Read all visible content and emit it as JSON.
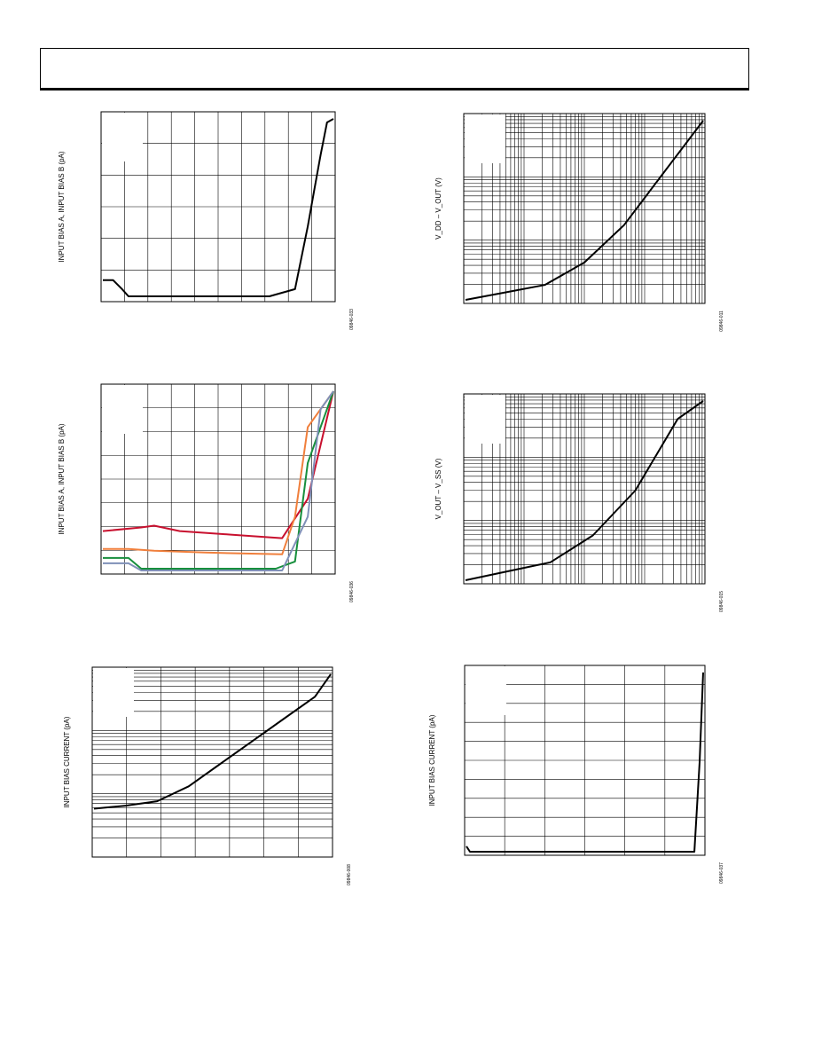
{
  "page": {
    "header": ""
  },
  "chart_data": [
    {
      "id": "plot1",
      "type": "line",
      "ylabel": "INPUT BIAS A, INPUT BIAS B (pA)",
      "code": "09846-033",
      "grid": {
        "x_lines": 10,
        "y_lines": 6,
        "log_x": false,
        "log_y": false
      },
      "series": [
        {
          "color": "#000000",
          "points": [
            [
              0,
              0.1
            ],
            [
              0.8,
              0.1
            ],
            [
              1.5,
              0.05
            ],
            [
              2,
              0.01
            ],
            [
              3,
              0.01
            ],
            [
              6,
              0.01
            ],
            [
              10,
              0.01
            ],
            [
              13,
              0.01
            ],
            [
              15,
              0.05
            ],
            [
              16,
              0.4
            ],
            [
              16.5,
              0.6
            ],
            [
              17,
              0.8
            ],
            [
              17.5,
              0.98
            ],
            [
              18,
              1.0
            ]
          ]
        }
      ]
    },
    {
      "id": "plot2",
      "type": "line",
      "ylabel": "INPUT BIAS A, INPUT BIAS B (pA)",
      "code": "09846-036",
      "grid": {
        "x_lines": 10,
        "y_lines": 8,
        "log_x": false,
        "log_y": false
      },
      "series": [
        {
          "color": "#c8102e",
          "points": [
            [
              0,
              0.22
            ],
            [
              3,
              0.24
            ],
            [
              4,
              0.25
            ],
            [
              6,
              0.22
            ],
            [
              10,
              0.2
            ],
            [
              14,
              0.18
            ],
            [
              16,
              0.4
            ],
            [
              18,
              1.0
            ]
          ]
        },
        {
          "color": "#f07f3c",
          "points": [
            [
              0,
              0.12
            ],
            [
              2,
              0.12
            ],
            [
              4,
              0.11
            ],
            [
              8,
              0.1
            ],
            [
              14,
              0.09
            ],
            [
              15,
              0.3
            ],
            [
              16,
              0.8
            ],
            [
              18,
              1.0
            ]
          ]
        },
        {
          "color": "#178f3d",
          "points": [
            [
              0,
              0.07
            ],
            [
              2,
              0.07
            ],
            [
              3,
              0.01
            ],
            [
              8,
              0.01
            ],
            [
              13.5,
              0.01
            ],
            [
              15,
              0.05
            ],
            [
              16,
              0.6
            ],
            [
              18,
              1.0
            ]
          ]
        },
        {
          "color": "#7f90b8",
          "points": [
            [
              0,
              0.04
            ],
            [
              2,
              0.04
            ],
            [
              3,
              0.0
            ],
            [
              8,
              0.0
            ],
            [
              14,
              0.0
            ],
            [
              16,
              0.3
            ],
            [
              17,
              0.9
            ],
            [
              18,
              1.0
            ]
          ]
        }
      ]
    },
    {
      "id": "plot3",
      "type": "line",
      "ylabel": "INPUT BIAS CURRENT (pA)",
      "code": "09846-008",
      "grid": {
        "x_lines": 7,
        "y_lines": 3,
        "log_x": false,
        "log_y": true
      },
      "series": [
        {
          "color": "#000000",
          "points": [
            [
              0,
              0.3
            ],
            [
              2,
              0.32
            ],
            [
              4,
              0.35
            ],
            [
              6,
              0.45
            ],
            [
              8,
              0.6
            ],
            [
              10,
              0.75
            ],
            [
              12,
              0.9
            ],
            [
              14,
              1.05
            ],
            [
              15,
              1.2
            ]
          ]
        }
      ]
    },
    {
      "id": "plot4",
      "type": "line",
      "ylabel": "V_DD – V_OUT (V)",
      "code": "09846-011",
      "grid": {
        "x_lines": 4,
        "y_lines": 3,
        "log_x": true,
        "log_y": true
      },
      "series": [
        {
          "color": "#000000",
          "points": [
            [
              0,
              0
            ],
            [
              0.5,
              0.05
            ],
            [
              1,
              0.1
            ],
            [
              1.5,
              0.25
            ],
            [
              2,
              0.5
            ],
            [
              2.5,
              0.85
            ],
            [
              3,
              1.2
            ]
          ]
        }
      ]
    },
    {
      "id": "plot5",
      "type": "line",
      "ylabel": "V_OUT – V_SS (V)",
      "code": "09846-015",
      "grid": {
        "x_lines": 4,
        "y_lines": 3,
        "log_x": true,
        "log_y": true
      },
      "series": [
        {
          "color": "#000000",
          "points": [
            [
              0,
              0
            ],
            [
              0.5,
              0.05
            ],
            [
              1,
              0.1
            ],
            [
              1.5,
              0.25
            ],
            [
              2,
              0.5
            ],
            [
              2.5,
              0.9
            ],
            [
              2.8,
              1.0
            ]
          ]
        }
      ]
    },
    {
      "id": "plot6",
      "type": "line",
      "ylabel": "INPUT BIAS CURRENT (pA)",
      "code": "09846-037",
      "grid": {
        "x_lines": 6,
        "y_lines": 10,
        "log_x": false,
        "log_y": false
      },
      "series": [
        {
          "color": "#000000",
          "points": [
            [
              0,
              0.03
            ],
            [
              0.2,
              0.0
            ],
            [
              5,
              0.0
            ],
            [
              8,
              0.0
            ],
            [
              11,
              0.0
            ],
            [
              13,
              0.0
            ],
            [
              13.3,
              0.5
            ],
            [
              13.5,
              1.0
            ]
          ]
        }
      ]
    }
  ]
}
